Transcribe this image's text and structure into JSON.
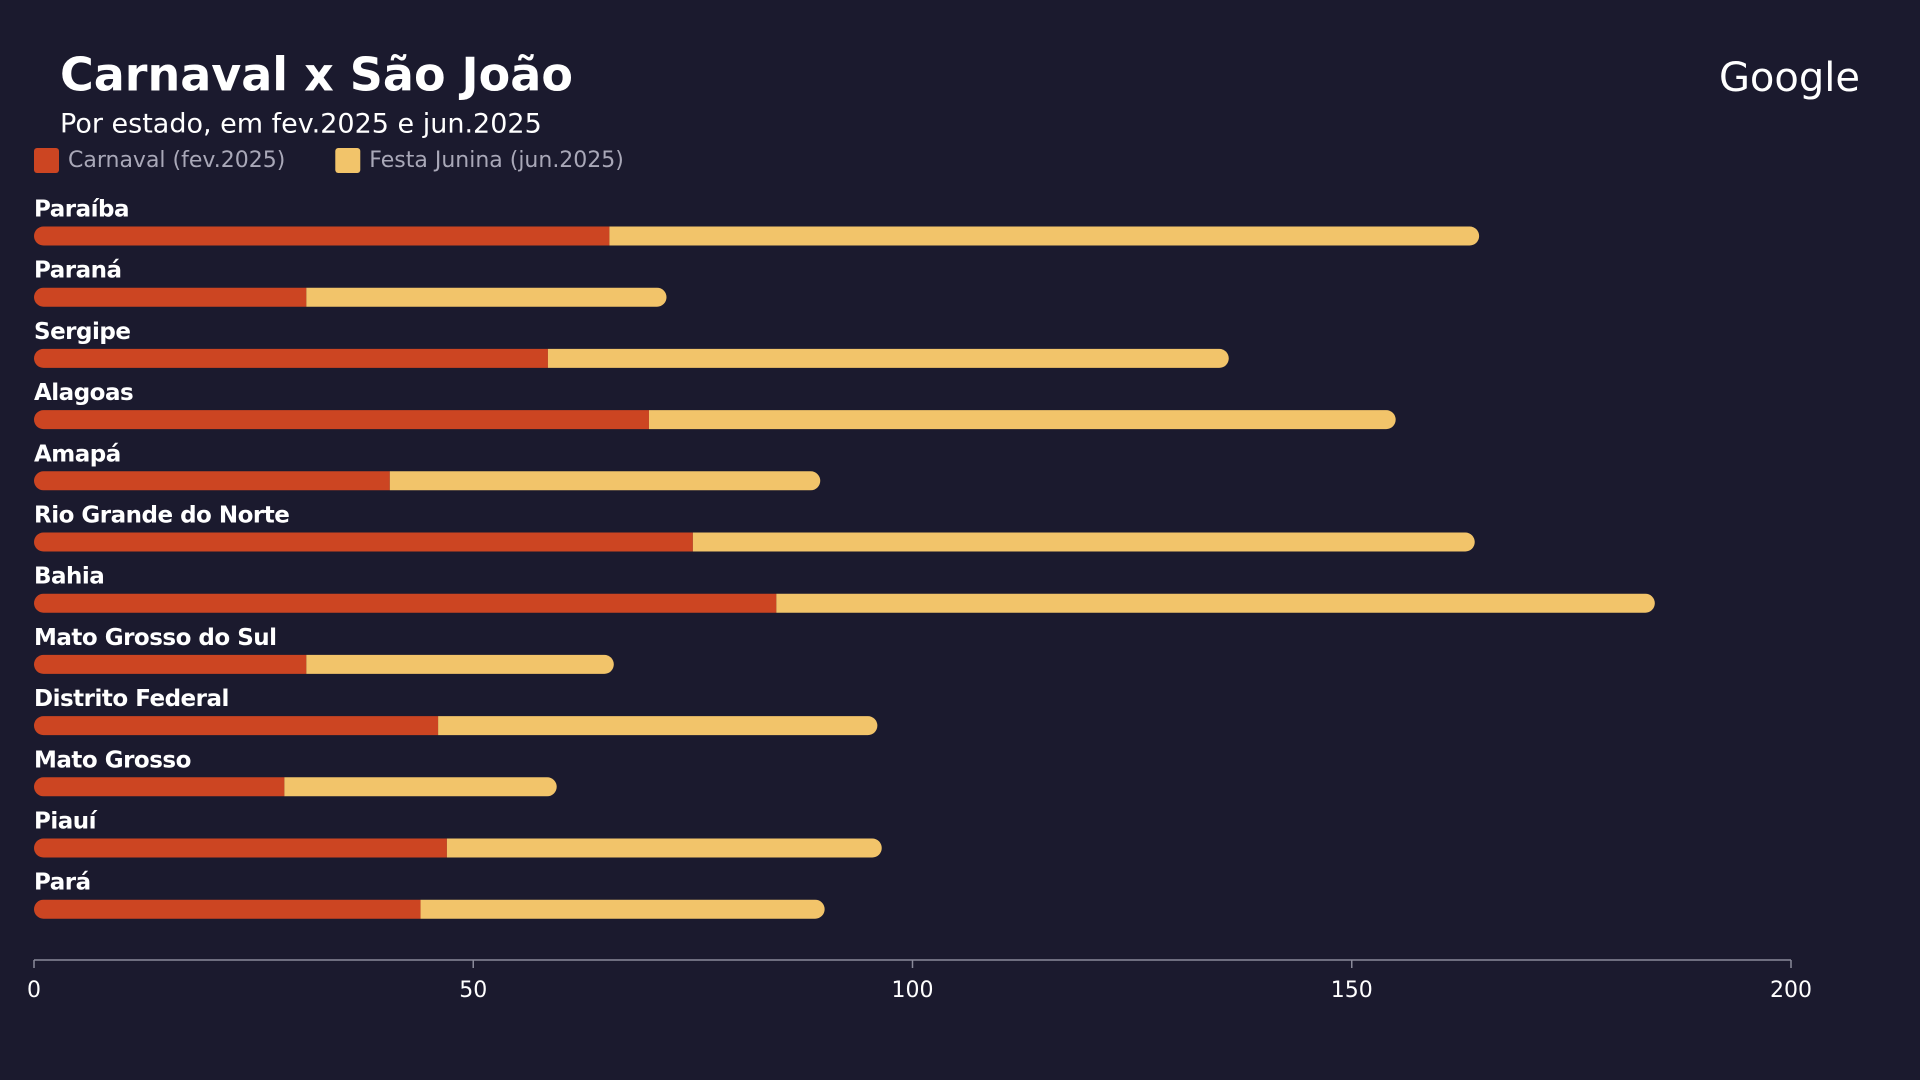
{
  "chart_data": {
    "type": "stacked_bar_horizontal",
    "title": "Carnaval x São João",
    "subtitle": "Por estado, em fev.2025 e jun.2025",
    "logo": "Google",
    "categories": [
      "Paraíba",
      "Paraná",
      "Sergipe",
      "Alagoas",
      "Amapá",
      "Rio Grande do Norte",
      "Bahia",
      "Mato Grosso do Sul",
      "Distrito Federal",
      "Mato Grosso",
      "Piauí",
      "Pará"
    ],
    "series": [
      {
        "name": "Carnaval (fev.2025)",
        "color": "#cc4522",
        "values": [
          65.5,
          31,
          58.5,
          70,
          40.5,
          75,
          84.5,
          31,
          46,
          28.5,
          47,
          44
        ]
      },
      {
        "name": "Festa Junina (jun.2025)",
        "color": "#f2c46a",
        "values": [
          99,
          41,
          77.5,
          85,
          49,
          89,
          100,
          35,
          50,
          31,
          49.5,
          46
        ]
      }
    ],
    "xlim": [
      0,
      200
    ],
    "xticks": [
      0,
      50,
      100,
      150,
      200
    ],
    "grid": false,
    "legend": "top-left"
  }
}
